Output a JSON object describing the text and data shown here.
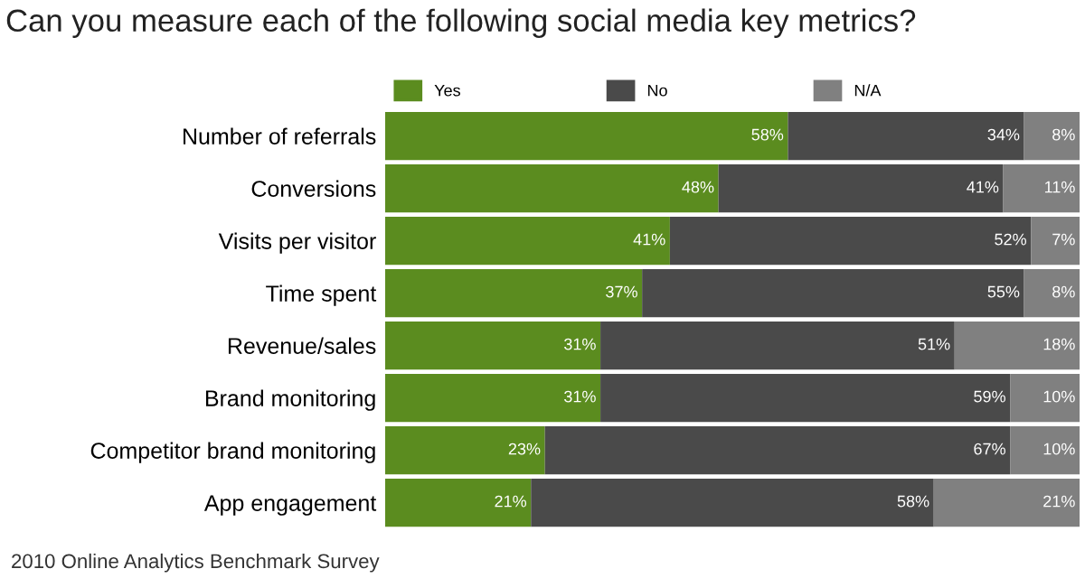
{
  "chart_data": {
    "type": "bar",
    "orientation": "horizontal",
    "stacked": true,
    "title": "Can you measure each of the following social media key metrics?",
    "categories": [
      "Number of referrals",
      "Conversions",
      "Visits per visitor",
      "Time spent",
      "Revenue/sales",
      "Brand monitoring",
      "Competitor brand monitoring",
      "App engagement"
    ],
    "series": [
      {
        "name": "Yes",
        "color": "#5b8c1f",
        "values": [
          58,
          48,
          41,
          37,
          31,
          31,
          23,
          21
        ],
        "value_labels": [
          "58%",
          "48%",
          "41%",
          "37%",
          "31%",
          "31%",
          "23%",
          "21%"
        ]
      },
      {
        "name": "No",
        "color": "#4a4a4a",
        "values": [
          34,
          41,
          52,
          55,
          51,
          59,
          67,
          58
        ],
        "value_labels": [
          "34%",
          "41%",
          "52%",
          "55%",
          "51%",
          "59%",
          "67%",
          "58%"
        ]
      },
      {
        "name": "N/A",
        "color": "#808080",
        "values": [
          8,
          11,
          7,
          8,
          18,
          10,
          10,
          21
        ],
        "value_labels": [
          "8%",
          "11%",
          "7%",
          "8%",
          "18%",
          "10%",
          "10%",
          "21%"
        ]
      }
    ],
    "legend": "top",
    "grid": false,
    "annotations": [
      "2010 Online Analytics Benchmark Survey"
    ]
  }
}
